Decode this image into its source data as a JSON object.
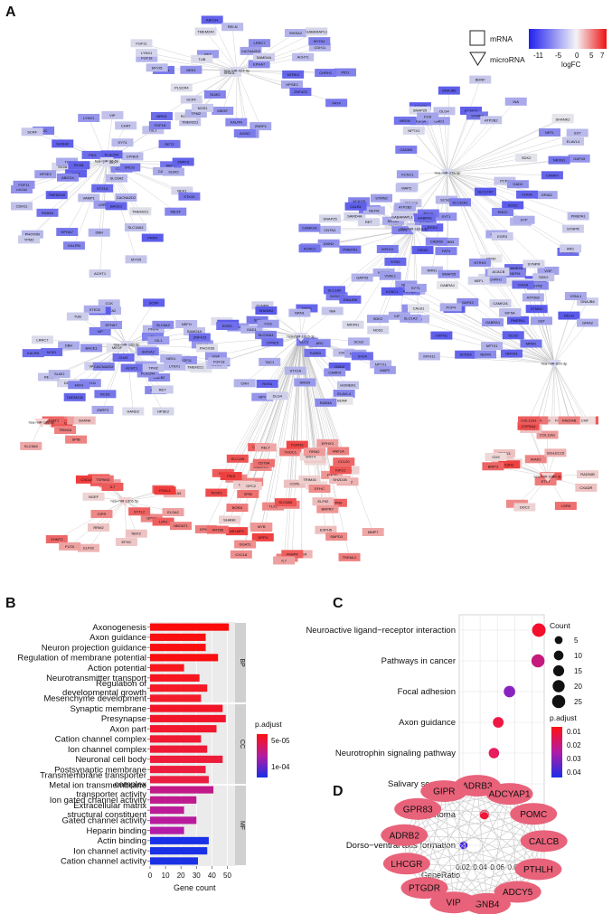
{
  "panels": {
    "A": "A",
    "B": "B",
    "C": "C",
    "D": "D"
  },
  "network_legend": {
    "node_types": [
      {
        "label": "mRNA",
        "shape": "square"
      },
      {
        "label": "microRNA",
        "shape": "v-triangle"
      }
    ],
    "logfc_ticks": [
      "-11",
      "-5",
      "0",
      "5",
      "7"
    ],
    "logfc_label": "logFC",
    "colors": {
      "low": "#2222ee",
      "mid": "#f4f4f8",
      "high": "#ee1111"
    }
  },
  "network": {
    "mirnas": [
      "hsa-miR-424-5p",
      "hsa-miR-27a-3p",
      "hsa-miR-96-5p",
      "hsa-miR-181a-3p",
      "hsa-miR-1915-3p",
      "hsa-miR-126-5p",
      "hsa-miR-625-3p",
      "hsa-miR-185-3p",
      "hsa-miR-1306-5p",
      "hsa-miR-3182-3p"
    ],
    "genes_down": [
      "PID1",
      "ZNRF3",
      "TMEM221",
      "FGF18",
      "LRRC7",
      "ABCG4",
      "TMEM240",
      "CACNA2D2",
      "CDH11",
      "FGF11",
      "SCRF",
      "SLMO",
      "PLSCR4",
      "LYNX1",
      "HPSE2",
      "BACE1",
      "EPHA7",
      "RCN1",
      "NEK1",
      "MEGF",
      "TPM2",
      "STK33",
      "SHISA2",
      "MYO5",
      "ACHT1",
      "KALRN",
      "NOS1",
      "SAMD4A",
      "ZNF423",
      "FAT4",
      "RET",
      "TUB",
      "GABARAPL1",
      "MYH11",
      "NTRK3",
      "CHRH1",
      "RELN",
      "AXIN2",
      "MRM1",
      "SH3GL2",
      "ACACB",
      "SDK2",
      "CADM3",
      "CNTN1",
      "PMEPA1",
      "KCNQ3",
      "GRIN2A",
      "DNAJB6",
      "VSNL1",
      "GAP43",
      "SLC1A2",
      "SYT1",
      "NEFL",
      "KIF5A",
      "STMN2",
      "GABRA1",
      "SNAP25",
      "CAMK2A",
      "SYN2",
      "NRXN1",
      "SCN2A",
      "KCNC1",
      "ATP2B2",
      "GRIA2",
      "NEFM",
      "CALB1",
      "SYNPR",
      "SST",
      "PCP4",
      "NPTX1",
      "CHGA",
      "SCG2",
      "NRGN",
      "TAC1",
      "PENK",
      "NPY",
      "RGS4",
      "CRH",
      "VGF",
      "SYP",
      "ENO2",
      "GAD1",
      "GAD2",
      "SLC17A7",
      "SLC32A1",
      "ELAVL4",
      "ELAVL3",
      "INA",
      "TUBB3",
      "MAP2",
      "DLG4",
      "SHANK2",
      "HOMER1",
      "CAMK4",
      "NRN1",
      "BDNF",
      "EGR3",
      "ARC",
      "FOS",
      "NR4A2",
      "CPNE5",
      "RAB3A",
      "SV2A",
      "SYT4",
      "CPLX2",
      "STX1A",
      "VAMP1",
      "SNCG",
      "NEFH",
      "PRPH",
      "CHAT",
      "SLC18A3",
      "CALB2",
      "VIP",
      "CCK",
      "TH",
      "DBH",
      "DDC",
      "SLC6A2",
      "PHOX2B",
      "HAND2",
      "GATA2",
      "ISL1",
      "RET2"
    ],
    "genes_up": [
      "FGFR3",
      "RELT",
      "BRPRY",
      "SLC5A5",
      "KIF1C",
      "PIK3",
      "SPIB",
      "DGAT1",
      "TRIM16",
      "SHANK",
      "SLC1A5",
      "ELF92",
      "MYB",
      "TESK3",
      "SH2D1B",
      "RRM2",
      "EFHC",
      "CCL20",
      "CXCL8",
      "IL7",
      "GPC2",
      "ELSA2",
      "LIPH",
      "SYTL2",
      "NGEF",
      "NEK2",
      "SHMT2",
      "NBOAT1",
      "FUTA",
      "TSPAN3",
      "FOXL1",
      "GIPR",
      "CHF",
      "RAD54B",
      "COL11A1",
      "TET3",
      "DDC2",
      "EVA1A",
      "CYP3A4",
      "ELF3",
      "LGR5",
      "EZH2",
      "IRAK2",
      "SPX",
      "PRSS3",
      "ETV7",
      "CXADR",
      "CDS",
      "SIGLEC15",
      "BNIP3",
      "SLC46A3",
      "ARL6IP1",
      "GCKR",
      "FMO5",
      "MYO5B",
      "GABRR1",
      "DPP4",
      "BORA",
      "SPC24",
      "EXPH5",
      "SLC31A1",
      "CD79A",
      "SMPD3",
      "CCR5",
      "TREML2",
      "YDJC",
      "CTR",
      "VWA2",
      "TLX1",
      "EPHB2",
      "DIAPH1",
      "KRT86",
      "PTPN6",
      "SP6",
      "HNF1A",
      "FKBP4",
      "THOC1",
      "WNT4",
      "MMP7",
      "TK1",
      "EPHX3",
      "KIR3",
      "COMP",
      "CSPG4"
    ]
  },
  "chart_data": [
    {
      "panel": "B",
      "type": "bar",
      "orientation": "horizontal",
      "xlabel": "Gene count",
      "xlim": [
        0,
        55
      ],
      "xticks": [
        0,
        10,
        20,
        30,
        40,
        50
      ],
      "color_legend": {
        "title": "p.adjust",
        "ticks": [
          "5e-05",
          "1e-04"
        ],
        "low_color": "#ff1111",
        "high_color": "#1a2ee8"
      },
      "groups": [
        {
          "name": "BP",
          "categories": [
            "Axonogenesis",
            "Axon guidance",
            "Neuron projection guidance",
            "Regulation of membrane potential",
            "Action potential",
            "Neurotransmitter transport",
            "Regulation of developmental growth",
            "Mesenchyme development"
          ],
          "values": [
            51,
            36,
            36,
            44,
            22,
            32,
            37,
            33
          ],
          "colors": [
            "#fb0b0b",
            "#fa0f11",
            "#fa0f11",
            "#fa0e10",
            "#f7161c",
            "#f71520",
            "#f51a26",
            "#f31c2a"
          ]
        },
        {
          "name": "CC",
          "categories": [
            "Synaptic membrane",
            "Presynapse",
            "Axon part",
            "Cation channel complex",
            "Ion channel complex",
            "Neuronal cell body",
            "Postsynaptic membrane",
            "Transmembrane transporter complex"
          ],
          "values": [
            47,
            49,
            43,
            33,
            37,
            47,
            36,
            38
          ],
          "colors": [
            "#f31427",
            "#f21429",
            "#f1172c",
            "#ef1931",
            "#ee1a35",
            "#ed1c38",
            "#ec1d3c",
            "#ea1f40"
          ]
        },
        {
          "name": "MF",
          "categories": [
            "Metal ion transmembrane transporter activity",
            "Ion gated channel activity",
            "Extracellular matrix structural constituent",
            "Gated channel activity",
            "Heparin binding",
            "Actin binding",
            "Ion channel activity",
            "Cation channel activity"
          ],
          "values": [
            41,
            30,
            22,
            30,
            22,
            38,
            37,
            31
          ],
          "colors": [
            "#c11a88",
            "#bf1a8e",
            "#bb1b96",
            "#b81b9c",
            "#b21ca6",
            "#1a30e6",
            "#1a30e6",
            "#1b31e4"
          ]
        }
      ]
    },
    {
      "panel": "C",
      "type": "scatter",
      "xlabel": "GeneRatio",
      "xlim": [
        0.02,
        0.11
      ],
      "xticks": [
        "0.02",
        "0.04",
        "0.06",
        "0.08",
        "0.10"
      ],
      "categories": [
        "Neuroactive ligand−receptor interaction",
        "Pathways in cancer",
        "Focal adhesion",
        "Axon guidance",
        "Neurotrophin signaling pathway",
        "Salivary secretion",
        "Melanoma",
        "Dorso−ventral axis formation"
      ],
      "x": [
        0.108,
        0.107,
        0.074,
        0.061,
        0.056,
        0.053,
        0.045,
        0.021
      ],
      "count": [
        27,
        25,
        17,
        14,
        13,
        12,
        10,
        5
      ],
      "p_adjust": [
        0.005,
        0.027,
        0.038,
        0.012,
        0.018,
        0.011,
        0.008,
        0.045
      ],
      "colors": [
        "#f40f2c",
        "#c41a7c",
        "#8a22c0",
        "#ef1844",
        "#e61c5c",
        "#ef1846",
        "#f21539",
        "#4226e4"
      ],
      "size_legend": {
        "title": "Count",
        "values": [
          5,
          10,
          15,
          20,
          25
        ]
      },
      "color_legend": {
        "title": "p.adjust",
        "ticks": [
          "0.01",
          "0.02",
          "0.03",
          "0.04"
        ]
      }
    }
  ],
  "ppi": {
    "nodes": [
      "ADRB3",
      "ADCYAP1",
      "POMC",
      "CALCB",
      "PTHLH",
      "ADCY5",
      "GNB4",
      "VIP",
      "PTGDR",
      "LHCGR",
      "ADRB2",
      "GPR83",
      "GIPR"
    ],
    "node_color": "#e8627a"
  }
}
